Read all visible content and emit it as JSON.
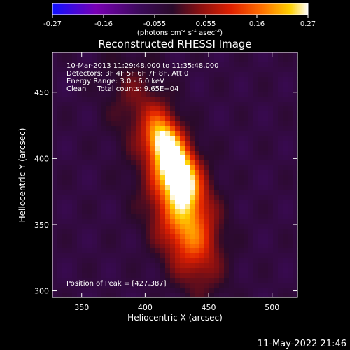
{
  "chart_data": {
    "type": "heatmap",
    "title": "Reconstructed RHESSI Image",
    "xlabel": "Heliocentric X (arcsec)",
    "ylabel": "Heliocentric Y (arcsec)",
    "xlim": [
      327,
      520
    ],
    "ylim": [
      295,
      480
    ],
    "x_ticks": [
      350,
      400,
      450,
      500
    ],
    "y_ticks": [
      300,
      350,
      400,
      450
    ],
    "colorbar": {
      "ticks": [
        "-0.27",
        "-0.16",
        "-0.055",
        "0.055",
        "0.16",
        "0.27"
      ],
      "units_text": "(photons cm",
      "units_sup1": "-2",
      "units_mid": " s",
      "units_sup2": "-1",
      "units_mid2": " asec",
      "units_sup3": "-2",
      "units_close": ")",
      "range": [
        -0.27,
        0.27
      ]
    },
    "annotations": [
      "10-Mar-2013 11:29:48.000 to 11:35:48.000",
      "Detectors: 3F 4F 5F 6F 7F 8F, Att 0",
      "Energy Range: 3.0 - 6.0 keV",
      "Clean     Total counts: 9.65E+04"
    ],
    "peak_text": "Position of Peak = [427,387]",
    "peak": [
      427,
      387
    ],
    "sources": [
      {
        "x": 427,
        "y": 387,
        "amp": 0.27,
        "sigma": 12
      },
      {
        "x": 415,
        "y": 413,
        "amp": 0.25,
        "sigma": 11
      },
      {
        "x": 435,
        "y": 345,
        "amp": 0.12,
        "sigma": 16
      },
      {
        "x": 425,
        "y": 370,
        "amp": 0.14,
        "sigma": 22
      },
      {
        "x": 395,
        "y": 440,
        "amp": 0.07,
        "sigma": 20
      },
      {
        "x": 440,
        "y": 320,
        "amp": 0.05,
        "sigma": 18
      }
    ],
    "colors": [
      "#1010ff",
      "#7800b4",
      "#3c0a5a",
      "#2a0a2a",
      "#8c1010",
      "#e02000",
      "#ff7000",
      "#ffd000",
      "#ffffff"
    ]
  },
  "footer": {
    "timestamp": "11-May-2022 21:46"
  }
}
